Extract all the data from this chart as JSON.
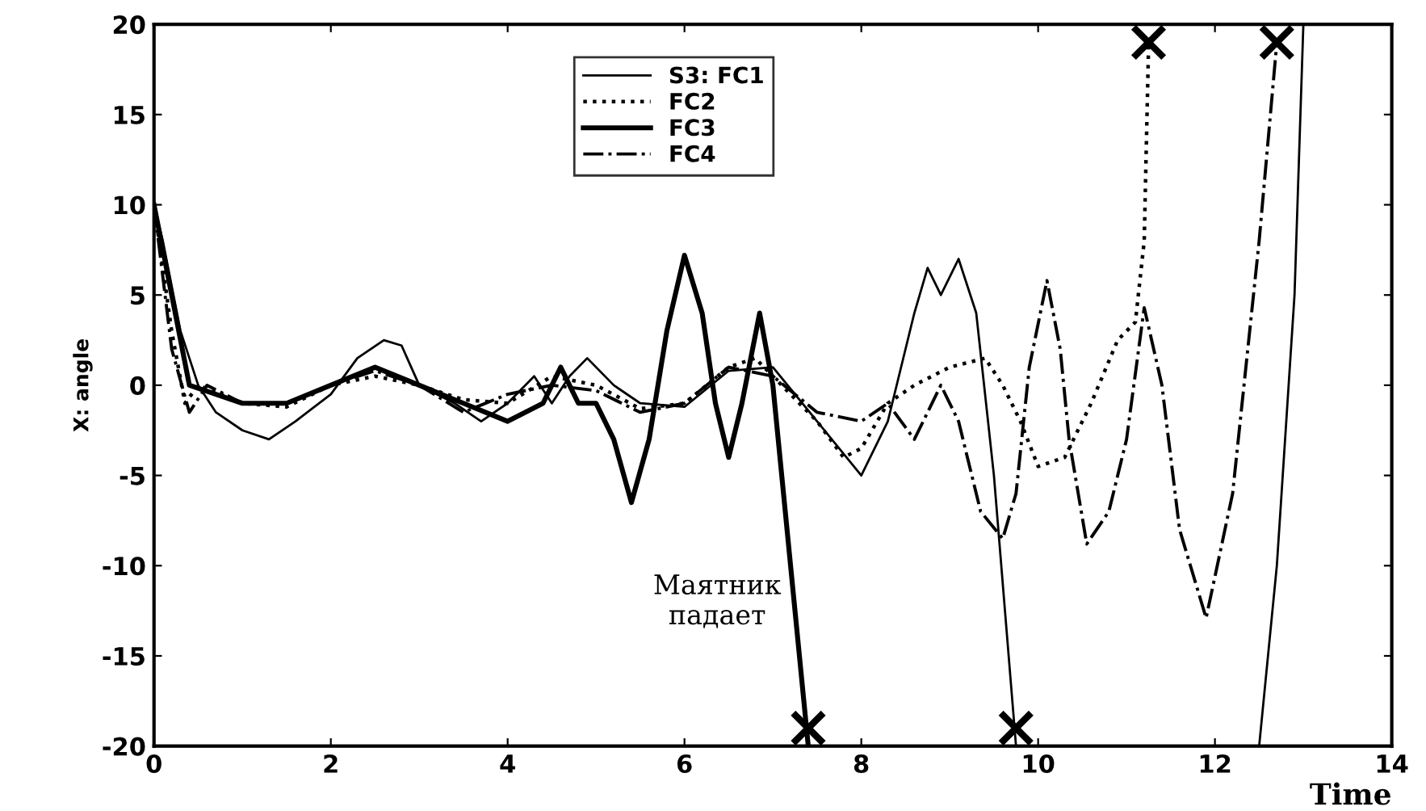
{
  "chart_data": {
    "type": "line",
    "xlabel": "Time",
    "ylabel": "X: angle",
    "xlim": [
      0,
      14
    ],
    "ylim": [
      -20,
      20
    ],
    "xticks": [
      0,
      2,
      4,
      6,
      8,
      10,
      12,
      14
    ],
    "yticks": [
      -20,
      -15,
      -10,
      -5,
      0,
      5,
      10,
      15,
      20
    ],
    "grid": false,
    "legend": "top",
    "annotations": [
      "Маятник\nпадает"
    ],
    "series": [
      {
        "name": "S3: FC1",
        "color": "#000000",
        "line_style": "solid",
        "x": [
          0,
          0.1,
          0.3,
          0.5,
          0.7,
          1.0,
          1.3,
          1.6,
          2.0,
          2.3,
          2.6,
          2.8,
          3.0,
          3.4,
          3.7,
          4.0,
          4.3,
          4.5,
          4.7,
          4.9,
          5.2,
          5.5,
          6.0,
          6.5,
          7.0,
          7.5,
          8.0,
          8.3,
          8.6,
          8.75,
          8.9,
          9.1,
          9.3,
          9.5,
          9.75,
          11.0,
          12.5,
          12.7,
          12.9,
          13.0
        ],
        "values": [
          10,
          8,
          3,
          0,
          -1.5,
          -2.5,
          -3,
          -2,
          -0.5,
          1.5,
          2.5,
          2.2,
          0,
          -1,
          -2,
          -1,
          0.5,
          -1,
          0.5,
          1.5,
          0,
          -1,
          -1.2,
          0.8,
          1,
          -2,
          -5,
          -2,
          4,
          6.5,
          5,
          7,
          4,
          -5,
          -20,
          null,
          -20,
          -10,
          5,
          20
        ]
      },
      {
        "name": "FC2",
        "color": "#000000",
        "line_style": "dotted",
        "x": [
          0,
          0.2,
          0.35,
          0.5,
          1.0,
          1.5,
          2.0,
          2.5,
          3.0,
          3.5,
          4.0,
          4.5,
          5.0,
          5.5,
          6.0,
          6.5,
          6.8,
          7.0,
          7.5,
          7.8,
          8.0,
          8.3,
          8.6,
          9.0,
          9.4,
          9.6,
          9.8,
          10.0,
          10.3,
          10.6,
          10.9,
          11.1,
          11.2,
          11.25
        ],
        "values": [
          10,
          3,
          -1,
          0,
          -1,
          -1.2,
          0,
          0.5,
          0,
          -0.8,
          -1,
          0.5,
          0,
          -1.3,
          -1,
          1,
          1.5,
          0.5,
          -2,
          -4,
          -3.5,
          -1,
          0,
          1,
          1.5,
          0,
          -2,
          -4.5,
          -4,
          -1,
          2.5,
          3.5,
          8,
          19
        ]
      },
      {
        "name": "FC3",
        "color": "#000000",
        "line_style": "solid",
        "x": [
          0,
          0.2,
          0.4,
          0.7,
          1.0,
          1.5,
          2.0,
          2.5,
          3.0,
          3.5,
          4.0,
          4.4,
          4.6,
          4.8,
          5.0,
          5.2,
          5.4,
          5.6,
          5.8,
          6.0,
          6.2,
          6.35,
          6.5,
          6.65,
          6.85,
          7.0,
          7.4
        ],
        "values": [
          10,
          5,
          0,
          -0.5,
          -1,
          -1,
          0,
          1,
          0,
          -1,
          -2,
          -1,
          1,
          -1,
          -1,
          -3,
          -6.5,
          -3,
          3,
          7.2,
          4,
          -1,
          -4,
          -1,
          4,
          0,
          -20
        ]
      },
      {
        "name": "FC4",
        "color": "#000000",
        "line_style": "dashdot",
        "x": [
          0,
          0.2,
          0.4,
          0.6,
          1.0,
          1.5,
          2.0,
          2.5,
          3.0,
          3.5,
          4.0,
          4.5,
          5.0,
          5.5,
          6.0,
          6.5,
          7.0,
          7.5,
          8.0,
          8.3,
          8.6,
          8.9,
          9.1,
          9.35,
          9.6,
          9.75,
          9.9,
          10.1,
          10.25,
          10.35,
          10.55,
          10.8,
          11.0,
          11.2,
          11.4,
          11.6,
          11.9,
          12.2,
          12.5,
          12.7
        ],
        "values": [
          10,
          2,
          -1.5,
          0,
          -1,
          -1,
          0,
          0.8,
          0,
          -1.5,
          -0.5,
          0,
          -0.3,
          -1.5,
          -1,
          1,
          0.5,
          -1.5,
          -2,
          -1,
          -3,
          0,
          -2,
          -7,
          -8.5,
          -6,
          1,
          5.8,
          2,
          -3,
          -8.8,
          -7,
          -3,
          4.3,
          0,
          -8,
          -12.9,
          -6,
          8,
          19
        ]
      },
      {
        "type": "scatter",
        "color": "#000000",
        "marker": "cross",
        "x": [
          7.4,
          9.75,
          11.25,
          12.7
        ],
        "values": [
          -19,
          -19,
          19,
          19
        ]
      }
    ]
  }
}
